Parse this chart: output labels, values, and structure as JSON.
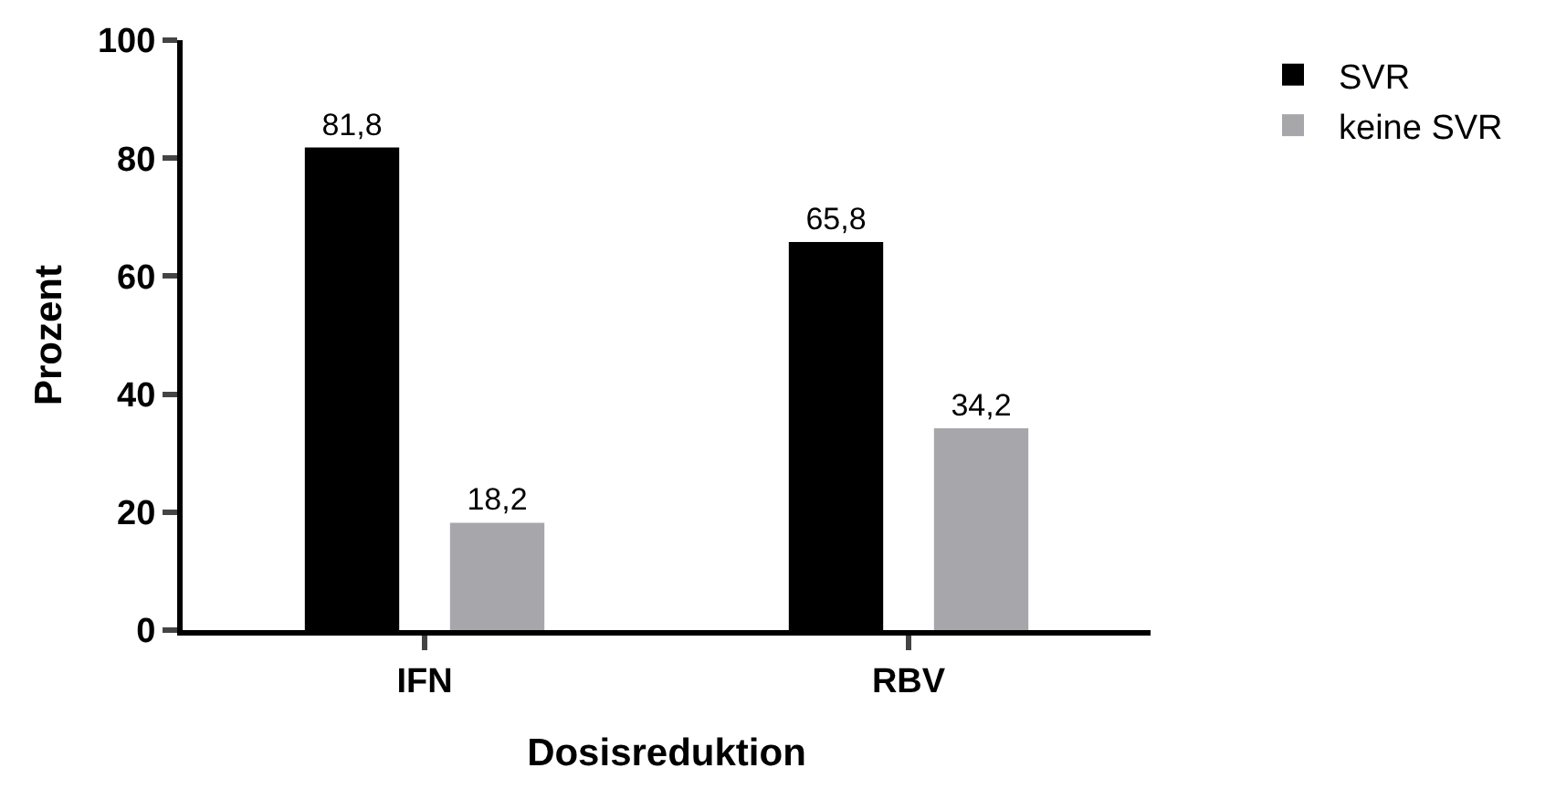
{
  "chart_data": {
    "type": "bar",
    "xlabel": "Dosisreduktion",
    "ylabel": "Prozent",
    "categories": [
      "IFN",
      "RBV"
    ],
    "series": [
      {
        "name": "SVR",
        "color": "#000000",
        "values": [
          81.8,
          65.8
        ],
        "value_labels": [
          "81,8",
          "65,8"
        ]
      },
      {
        "name": "keine SVR",
        "color": "#a7a6ab",
        "values": [
          18.2,
          34.2
        ],
        "value_labels": [
          "18,2",
          "34,2"
        ]
      }
    ],
    "ylim": [
      0,
      100
    ],
    "yticks": [
      0,
      20,
      40,
      60,
      80,
      100
    ],
    "legend": "top right"
  }
}
